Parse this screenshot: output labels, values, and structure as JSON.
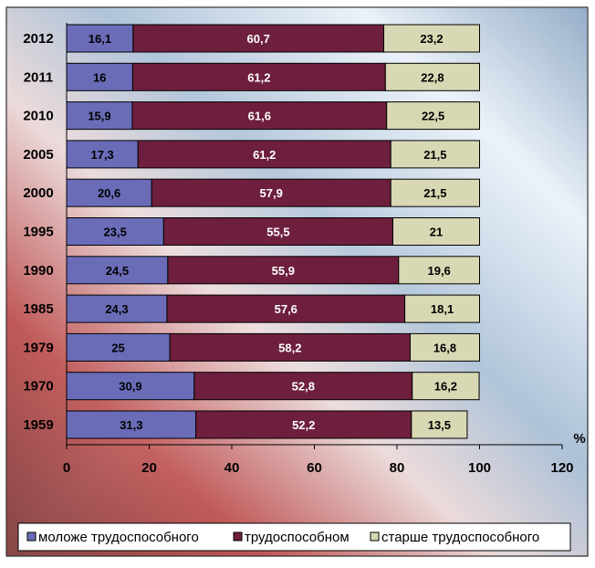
{
  "chart_data": {
    "type": "bar",
    "orientation": "horizontal",
    "stacked": true,
    "categories": [
      "2012",
      "2011",
      "2010",
      "2005",
      "2000",
      "1995",
      "1990",
      "1985",
      "1979",
      "1970",
      "1959"
    ],
    "series": [
      {
        "name": "моложе трудоспособного",
        "color": "#6a6cb8",
        "label_color": "#000000",
        "values": [
          16.1,
          16,
          15.9,
          17.3,
          20.6,
          23.5,
          24.5,
          24.3,
          25,
          30.9,
          31.3
        ],
        "labels": [
          "16,1",
          "16",
          "15,9",
          "17,3",
          "20,6",
          "23,5",
          "24,5",
          "24,3",
          "25",
          "30,9",
          "31,3"
        ]
      },
      {
        "name": "трудоспособном",
        "color": "#6e1f3d",
        "label_color": "#ffffff",
        "values": [
          60.7,
          61.2,
          61.6,
          61.2,
          57.9,
          55.5,
          55.9,
          57.6,
          58.2,
          52.8,
          52.2
        ],
        "labels": [
          "60,7",
          "61,2",
          "61,6",
          "61,2",
          "57,9",
          "55,5",
          "55,9",
          "57,6",
          "58,2",
          "52,8",
          "52,2"
        ]
      },
      {
        "name": "старше трудоспособного",
        "color": "#d8d8b4",
        "label_color": "#000000",
        "values": [
          23.2,
          22.8,
          22.5,
          21.5,
          21.5,
          21,
          19.6,
          18.1,
          16.8,
          16.2,
          13.5
        ],
        "labels": [
          "23,2",
          "22,8",
          "22,5",
          "21,5",
          "21,5",
          "21",
          "19,6",
          "18,1",
          "16,8",
          "16,2",
          "13,5"
        ]
      }
    ],
    "xlim": [
      0,
      120
    ],
    "xticks": [
      "0",
      "20",
      "40",
      "60",
      "80",
      "100",
      "120"
    ],
    "xunit": "%",
    "grid": false,
    "legend_position": "bottom"
  }
}
